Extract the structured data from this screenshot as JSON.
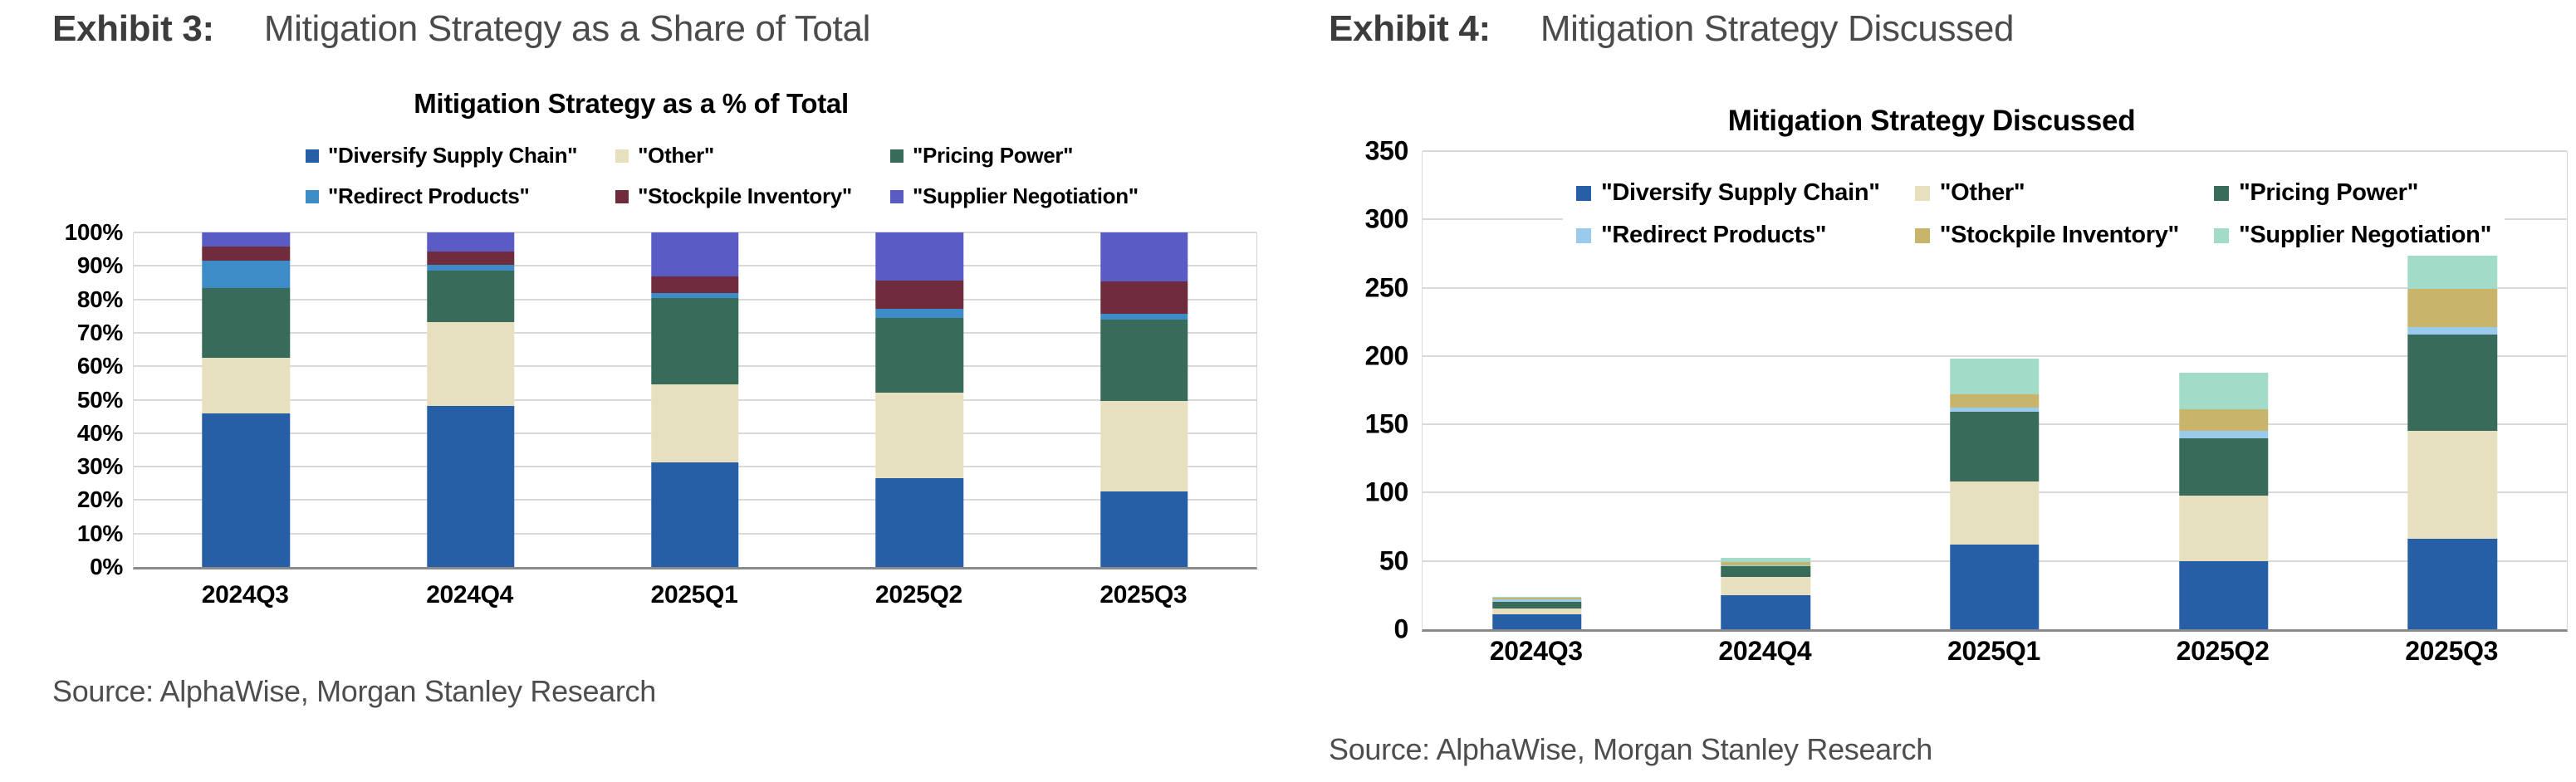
{
  "exhibits": [
    {
      "heading_label": "Exhibit 3:",
      "heading_title": "Mitigation Strategy as a Share of Total",
      "source": "Source: AlphaWise, Morgan Stanley Research"
    },
    {
      "heading_label": "Exhibit 4:",
      "heading_title": "Mitigation Strategy Discussed",
      "source": "Source:  AlphaWise, Morgan Stanley Research"
    }
  ],
  "chart_data": [
    {
      "type": "bar",
      "stacked": true,
      "title": "Mitigation Strategy as a % of Total",
      "categories": [
        "2024Q3",
        "2024Q4",
        "2025Q1",
        "2025Q2",
        "2025Q3"
      ],
      "series": [
        {
          "name": "\"Diversify Supply Chain\"",
          "color": "#275FA6",
          "values": [
            45.8,
            48.1,
            31.3,
            26.6,
            22.6
          ]
        },
        {
          "name": "\"Other\"",
          "color": "#E7E0BE",
          "values": [
            16.7,
            25.0,
            23.2,
            25.5,
            27.1
          ]
        },
        {
          "name": "\"Pricing Power\"",
          "color": "#386B5A",
          "values": [
            20.8,
            15.4,
            25.8,
            22.3,
            24.3
          ]
        },
        {
          "name": "\"Redirect Products\"",
          "color": "#3E8CC7",
          "values": [
            8.3,
            1.9,
            1.5,
            2.7,
            1.7
          ]
        },
        {
          "name": "\"Stockpile Inventory\"",
          "color": "#6E2C3C",
          "values": [
            4.2,
            3.8,
            5.1,
            8.5,
            9.6
          ]
        },
        {
          "name": "\"Supplier Negotiation\"",
          "color": "#5A5BC4",
          "values": [
            4.2,
            5.8,
            13.1,
            14.4,
            14.7
          ]
        }
      ],
      "unit": "%",
      "ylim": [
        0,
        100
      ],
      "yticks": [
        {
          "value": 0,
          "label": "0%"
        },
        {
          "value": 10,
          "label": "10%"
        },
        {
          "value": 20,
          "label": "20%"
        },
        {
          "value": 30,
          "label": "30%"
        },
        {
          "value": 40,
          "label": "40%"
        },
        {
          "value": 50,
          "label": "50%"
        },
        {
          "value": 60,
          "label": "60%"
        },
        {
          "value": 70,
          "label": "70%"
        },
        {
          "value": 80,
          "label": "80%"
        },
        {
          "value": 90,
          "label": "90%"
        },
        {
          "value": 100,
          "label": "100%"
        }
      ],
      "grid": true,
      "grid_color": "#D9D9D9",
      "axis_color": "#8A8A8A",
      "legend_position": "top"
    },
    {
      "type": "bar",
      "stacked": true,
      "title": "Mitigation Strategy Discussed",
      "categories": [
        "2024Q3",
        "2024Q4",
        "2025Q1",
        "2025Q2",
        "2025Q3"
      ],
      "series": [
        {
          "name": "\"Diversify Supply Chain\"",
          "color": "#275FA6",
          "values": [
            11,
            25,
            62,
            50,
            66
          ]
        },
        {
          "name": "\"Other\"",
          "color": "#E7E0BE",
          "values": [
            4,
            13,
            46,
            48,
            79
          ]
        },
        {
          "name": "\"Pricing Power\"",
          "color": "#386B5A",
          "values": [
            5,
            8,
            51,
            42,
            71
          ]
        },
        {
          "name": "\"Redirect Products\"",
          "color": "#9BCBEC",
          "values": [
            2,
            1,
            3,
            5,
            5
          ]
        },
        {
          "name": "\"Stockpile Inventory\"",
          "color": "#C9B46C",
          "values": [
            1,
            2,
            10,
            16,
            28
          ]
        },
        {
          "name": "\"Supplier Negotiation\"",
          "color": "#A2DBC8",
          "values": [
            1,
            3,
            26,
            27,
            43
          ]
        }
      ],
      "unit": "count",
      "totals": [
        24,
        52,
        198,
        188,
        292
      ],
      "ylim": [
        0,
        350
      ],
      "yticks": [
        {
          "value": 0,
          "label": "0"
        },
        {
          "value": 50,
          "label": "50"
        },
        {
          "value": 100,
          "label": "100"
        },
        {
          "value": 150,
          "label": "150"
        },
        {
          "value": 200,
          "label": "200"
        },
        {
          "value": 250,
          "label": "250"
        },
        {
          "value": 300,
          "label": "300"
        },
        {
          "value": 350,
          "label": "350"
        }
      ],
      "grid": true,
      "grid_color": "#D9D9D9",
      "axis_color": "#8A8A8A",
      "legend_position": "inside-top"
    }
  ]
}
